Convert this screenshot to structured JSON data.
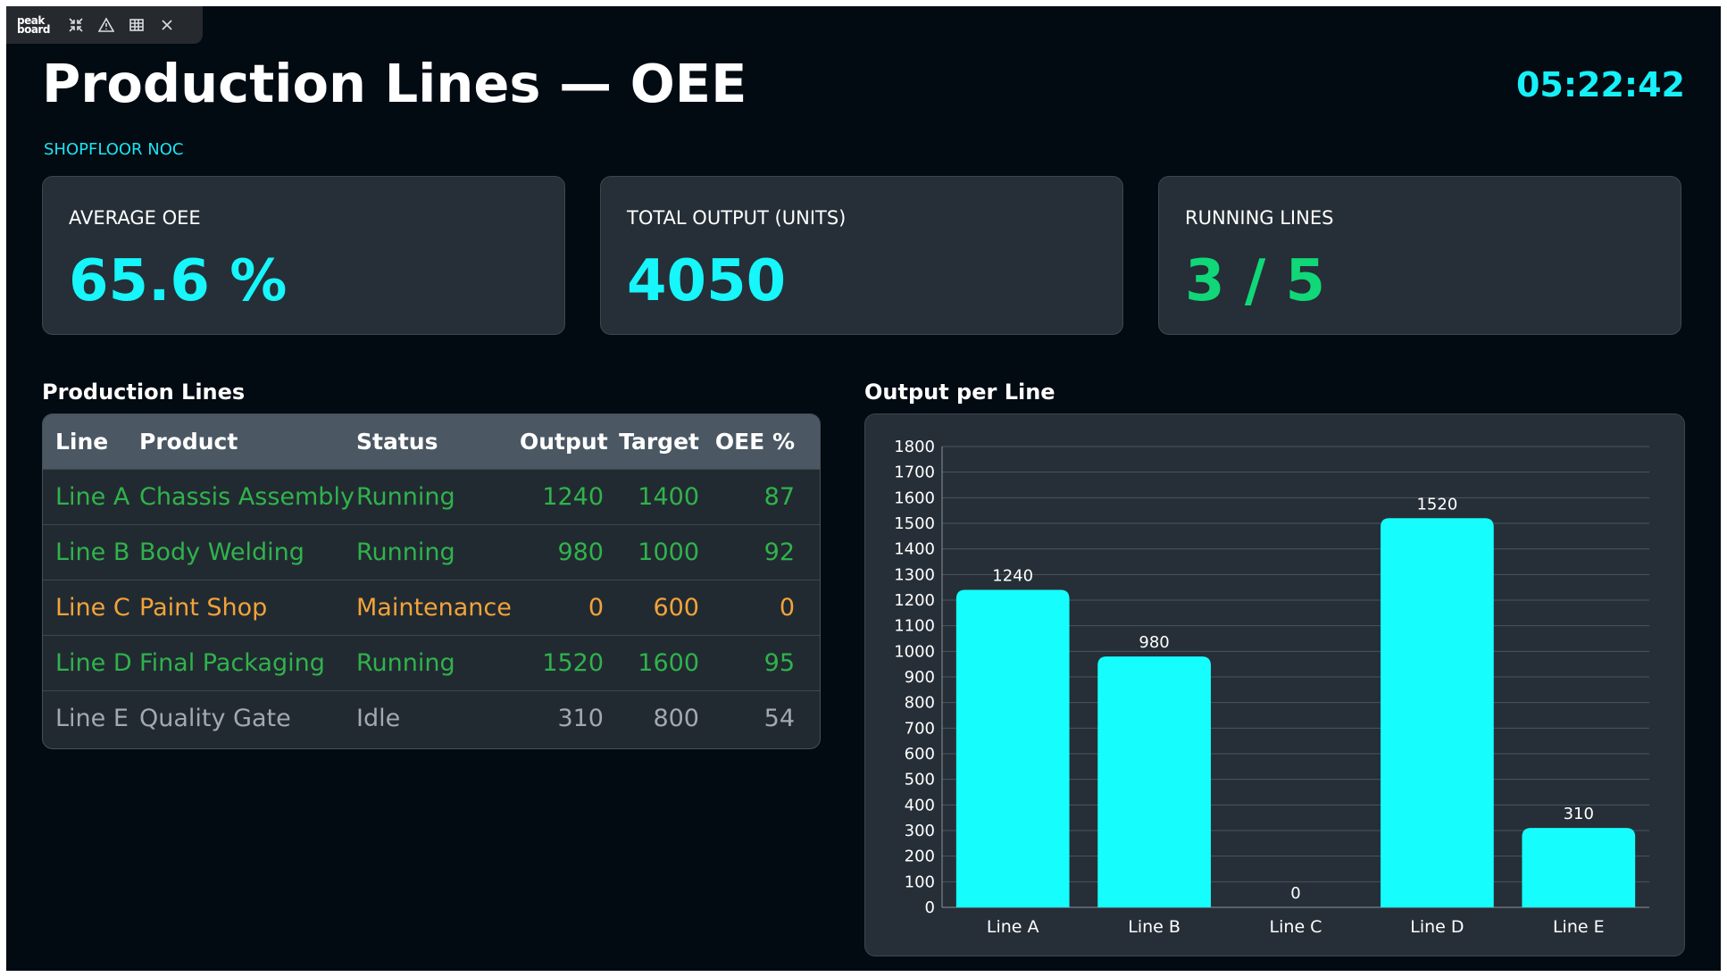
{
  "toolbar": {
    "logo_line1": "peak",
    "logo_line2": "board",
    "icons": [
      "collapse-icon",
      "warning-icon",
      "table-icon",
      "close-icon"
    ]
  },
  "header": {
    "title": "Production Lines — OEE",
    "subtitle": "SHOPFLOOR NOC",
    "clock": "05:22:42"
  },
  "kpis": [
    {
      "label": "AVERAGE OEE",
      "value": "65.6 %",
      "color": "#16f6fb"
    },
    {
      "label": "TOTAL OUTPUT (UNITS)",
      "value": "4050",
      "color": "#16f6fb"
    },
    {
      "label": "RUNNING LINES",
      "value": "3 / 5",
      "color": "#10d878"
    }
  ],
  "table": {
    "title": "Production Lines",
    "columns": [
      "Line",
      "Product",
      "Status",
      "Output",
      "Target",
      "OEE %"
    ],
    "rows": [
      {
        "line": "Line A",
        "product": "Chassis Assembly",
        "status": "Running",
        "output": "1240",
        "target": "1400",
        "oee": "87"
      },
      {
        "line": "Line B",
        "product": "Body Welding",
        "status": "Running",
        "output": "980",
        "target": "1000",
        "oee": "92"
      },
      {
        "line": "Line C",
        "product": "Paint Shop",
        "status": "Maintenance",
        "output": "0",
        "target": "600",
        "oee": "0"
      },
      {
        "line": "Line D",
        "product": "Final Packaging",
        "status": "Running",
        "output": "1520",
        "target": "1600",
        "oee": "95"
      },
      {
        "line": "Line E",
        "product": "Quality Gate",
        "status": "Idle",
        "output": "310",
        "target": "800",
        "oee": "54"
      }
    ],
    "status_colors": {
      "Running": "#2fb34c",
      "Maintenance": "#f2a33a",
      "Idle": "#a3a9ae"
    }
  },
  "chart_title": "Output per Line",
  "chart_data": {
    "type": "bar",
    "categories": [
      "Line A",
      "Line B",
      "Line C",
      "Line D",
      "Line E"
    ],
    "values": [
      1240,
      980,
      0,
      1520,
      310
    ],
    "ylim": [
      0,
      1800
    ],
    "ytick_step": 100,
    "grid": true,
    "bar_color": "#16fdfd"
  }
}
